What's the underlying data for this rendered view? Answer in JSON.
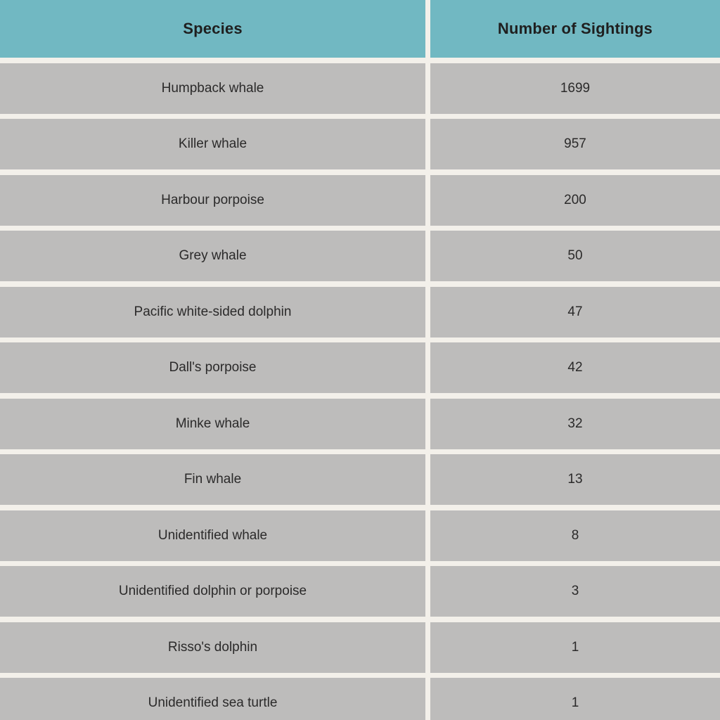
{
  "colors": {
    "header_background": "#71b8c2",
    "row_background": "#bdbcbb",
    "page_background": "#f3f0ea",
    "header_text": "#1f1f1f",
    "body_text": "#2b2a2a"
  },
  "header": {
    "species_label": "Species",
    "count_label": "Number of Sightings"
  },
  "rows": [
    {
      "species": "Humpback whale",
      "count": "1699"
    },
    {
      "species": "Killer whale",
      "count": "957"
    },
    {
      "species": "Harbour porpoise",
      "count": "200"
    },
    {
      "species": "Grey whale",
      "count": "50"
    },
    {
      "species": "Pacific white-sided dolphin",
      "count": "47"
    },
    {
      "species": "Dall's porpoise",
      "count": "42"
    },
    {
      "species": "Minke whale",
      "count": "32"
    },
    {
      "species": "Fin whale",
      "count": "13"
    },
    {
      "species": "Unidentified whale",
      "count": "8"
    },
    {
      "species": "Unidentified dolphin or porpoise",
      "count": "3"
    },
    {
      "species": "Risso's dolphin",
      "count": "1"
    },
    {
      "species": "Unidentified sea turtle",
      "count": "1"
    }
  ],
  "chart_data": {
    "type": "table",
    "title": "",
    "columns": [
      "Species",
      "Number of Sightings"
    ],
    "categories": [
      "Humpback whale",
      "Killer whale",
      "Harbour porpoise",
      "Grey whale",
      "Pacific white-sided dolphin",
      "Dall's porpoise",
      "Minke whale",
      "Fin whale",
      "Unidentified whale",
      "Unidentified dolphin or porpoise",
      "Risso's dolphin",
      "Unidentified sea turtle"
    ],
    "values": [
      1699,
      957,
      200,
      50,
      47,
      42,
      32,
      13,
      8,
      3,
      1,
      1
    ]
  }
}
